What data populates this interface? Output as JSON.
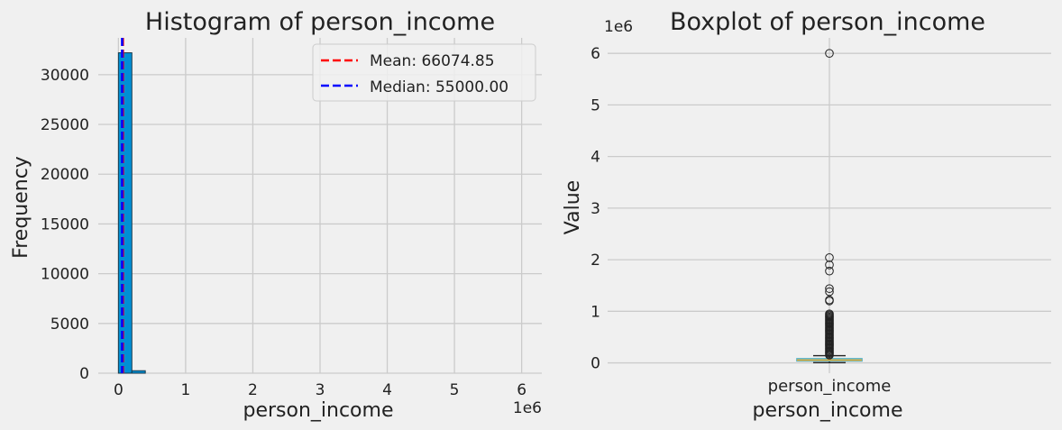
{
  "figure": {
    "background": "#f0f0f0"
  },
  "chart_data": [
    {
      "type": "bar",
      "subtype": "histogram",
      "title": "Histogram of person_income",
      "xlabel": "person_income",
      "ylabel": "Frequency",
      "x_offset_label": "1e6",
      "xlim": [
        -0.3,
        6.3
      ],
      "ylim": [
        0,
        33700
      ],
      "x_scale": 1000000,
      "xticks": [
        0,
        1,
        2,
        3,
        4,
        5,
        6
      ],
      "yticks": [
        0,
        5000,
        10000,
        15000,
        20000,
        25000,
        30000
      ],
      "bins": [
        {
          "x0": 0,
          "x1": 0.2,
          "count": 32200
        },
        {
          "x0": 0.2,
          "x1": 0.4,
          "count": 250
        }
      ],
      "bar_color": "#008fd5",
      "grid": true,
      "reference_lines": [
        {
          "label": "Mean: 66074.85",
          "value": 66074.85,
          "color": "#ff0000",
          "style": "dashed"
        },
        {
          "label": "Median: 55000.00",
          "value": 55000.0,
          "color": "#0000ff",
          "style": "dashed"
        }
      ],
      "legend_position": "top-right"
    },
    {
      "type": "box",
      "title": "Boxplot of person_income",
      "xlabel": "person_income",
      "ylabel": "Value",
      "y_offset_label": "1e6",
      "category": "person_income",
      "ylim": [
        -0.2,
        6.3
      ],
      "y_scale": 1000000,
      "yticks": [
        0,
        1,
        2,
        3,
        4,
        5,
        6
      ],
      "box": {
        "whisker_low": 0.004,
        "q1": 0.039,
        "median": 0.055,
        "q3": 0.08,
        "whisker_high": 0.14
      },
      "outliers": [
        6.0,
        2.04,
        1.9,
        1.78,
        1.44,
        1.38,
        1.22,
        1.2,
        0.95,
        0.93,
        0.91,
        0.89,
        0.87,
        0.85,
        0.83,
        0.81,
        0.79,
        0.77,
        0.75,
        0.73,
        0.71,
        0.69,
        0.67,
        0.65,
        0.63,
        0.61,
        0.59,
        0.57,
        0.55,
        0.53,
        0.51,
        0.49,
        0.47,
        0.45,
        0.43,
        0.41,
        0.39,
        0.37,
        0.35,
        0.33,
        0.31,
        0.29,
        0.27,
        0.25,
        0.23,
        0.21,
        0.19,
        0.17,
        0.15
      ],
      "box_color": "#4daec4",
      "median_color": "#e5ae38",
      "grid": true
    }
  ]
}
